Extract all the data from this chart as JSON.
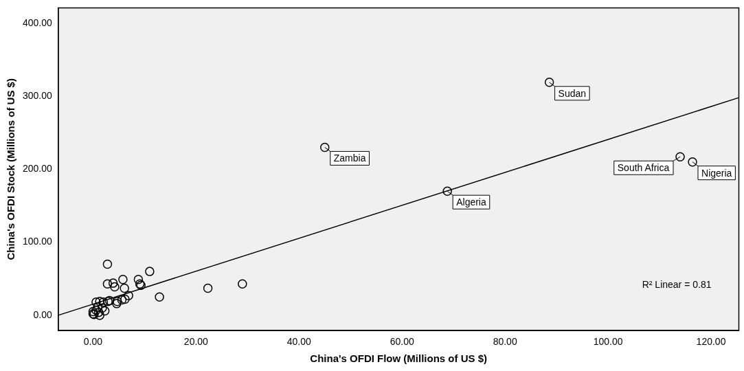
{
  "chart_data": {
    "type": "scatter",
    "xlabel": "China's OFDI Flow (Millions of US $)",
    "ylabel": "China's OFDI Stock (Millions of US $)",
    "xlim": [
      -6.75,
      125.4
    ],
    "xticks": [
      {
        "value": 0,
        "label": "0.00"
      },
      {
        "value": 20,
        "label": "20.00"
      },
      {
        "value": 40,
        "label": "40.00"
      },
      {
        "value": 60,
        "label": "60.00"
      },
      {
        "value": 80,
        "label": "80.00"
      },
      {
        "value": 100,
        "label": "100.00"
      },
      {
        "value": 120,
        "label": "120.00"
      }
    ],
    "ylim": [
      -21,
      421
    ],
    "yticks": [
      {
        "value": 0,
        "label": "0.00"
      },
      {
        "value": 100,
        "label": "100.00"
      },
      {
        "value": 200,
        "label": "200.00"
      },
      {
        "value": 300,
        "label": "300.00"
      },
      {
        "value": 400,
        "label": "400.00"
      }
    ],
    "grid": false,
    "legend": false,
    "marker": "circle",
    "series": [
      {
        "color": "#000000",
        "x": [
          88.6,
          45,
          68.8,
          114,
          116.4,
          2.8,
          11,
          5.8,
          8.8,
          2.8,
          3.9,
          4.2,
          6.1,
          9.1,
          9.3,
          22.3,
          29,
          12.9,
          6.9,
          6.2,
          5.6,
          4.6,
          4.7,
          3.2,
          2.9,
          0.6,
          1.3,
          2,
          0.9,
          1.8,
          0,
          1.1,
          0.2,
          1.3,
          0,
          2.3,
          0.6
        ],
        "values": [
          319,
          230,
          170,
          217,
          210,
          70,
          60,
          49,
          49,
          43,
          44,
          39,
          37,
          43,
          41,
          37,
          43,
          25,
          27,
          22,
          21,
          16,
          19,
          20,
          19,
          18,
          19,
          18,
          11,
          10,
          5,
          4,
          1,
          0,
          2,
          6,
          7
        ],
        "value_labels": [
          "Sudan",
          "Zambia",
          "Algeria",
          "South Africa",
          "Nigeria",
          null,
          null,
          null,
          null,
          null,
          null,
          null,
          null,
          null,
          null,
          null,
          null,
          null,
          null,
          null,
          null,
          null,
          null,
          null,
          null,
          null,
          null,
          null,
          null,
          null,
          null,
          null,
          null,
          null,
          null,
          null,
          null
        ]
      },
      {
        "type": "line",
        "color": "#000000",
        "x": [
          -6.75,
          125.4
        ],
        "values": [
          0,
          298
        ],
        "marker": "none",
        "line_style": "solid"
      }
    ],
    "annotations": [
      "R² Linear = 0.81"
    ]
  }
}
